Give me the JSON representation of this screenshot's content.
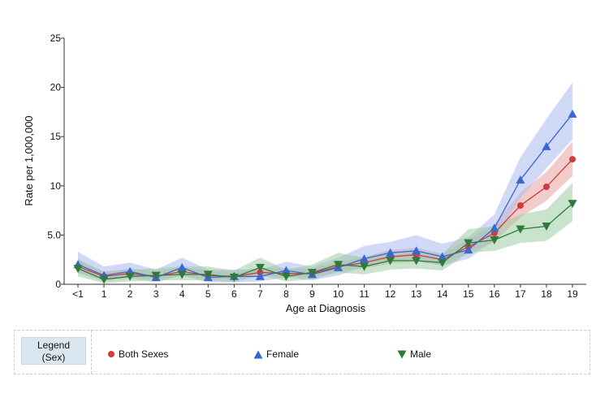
{
  "chart_data": {
    "type": "line",
    "xlabel": "Age at Diagnosis",
    "ylabel": "Rate per 1,000,000",
    "ylim": [
      0,
      25
    ],
    "yticks": [
      0,
      5,
      10,
      15,
      20,
      25
    ],
    "ytick_labels": [
      "0",
      "5.0",
      "10",
      "15",
      "20",
      "25"
    ],
    "categories": [
      "<1",
      "1",
      "2",
      "3",
      "4",
      "5",
      "6",
      "7",
      "8",
      "9",
      "10",
      "11",
      "12",
      "13",
      "14",
      "15",
      "16",
      "17",
      "18",
      "19"
    ],
    "grid": false,
    "series": [
      {
        "name": "Both Sexes",
        "color": "#d23b3b",
        "band_color": "#e8a0a0",
        "marker": "circle",
        "values": [
          1.8,
          0.8,
          1.1,
          0.8,
          1.3,
          0.9,
          0.8,
          1.2,
          1.1,
          1.1,
          1.8,
          2.2,
          2.8,
          3.0,
          2.5,
          3.8,
          5.2,
          8.0,
          9.9,
          12.7
        ],
        "lower": [
          1.2,
          0.5,
          0.7,
          0.5,
          0.8,
          0.5,
          0.5,
          0.8,
          0.7,
          0.7,
          1.3,
          1.6,
          2.1,
          2.3,
          1.9,
          3.1,
          4.3,
          6.8,
          8.5,
          11.0
        ],
        "upper": [
          2.5,
          1.3,
          1.6,
          1.3,
          1.8,
          1.4,
          1.3,
          1.7,
          1.6,
          1.6,
          2.3,
          2.8,
          3.5,
          3.7,
          3.1,
          4.6,
          6.1,
          9.3,
          11.4,
          14.5
        ]
      },
      {
        "name": "Female",
        "color": "#3a67d0",
        "band_color": "#a9bcef",
        "marker": "triangle-up",
        "values": [
          2.0,
          0.9,
          1.3,
          0.7,
          1.7,
          0.7,
          0.8,
          0.8,
          1.4,
          1.0,
          1.7,
          2.6,
          3.2,
          3.4,
          2.8,
          3.5,
          5.7,
          10.6,
          14.0,
          17.3
        ],
        "lower": [
          1.1,
          0.3,
          0.6,
          0.2,
          0.9,
          0.2,
          0.2,
          0.3,
          0.7,
          0.4,
          0.9,
          1.8,
          2.3,
          2.4,
          1.9,
          2.6,
          4.4,
          8.8,
          11.8,
          14.7
        ],
        "upper": [
          3.3,
          1.8,
          2.2,
          1.5,
          2.7,
          1.5,
          1.5,
          1.5,
          2.3,
          1.8,
          2.7,
          3.9,
          4.3,
          5.0,
          4.1,
          4.8,
          7.1,
          12.9,
          16.8,
          20.5
        ]
      },
      {
        "name": "Male",
        "color": "#2e7a3a",
        "band_color": "#9fcca3",
        "marker": "triangle-down",
        "values": [
          1.6,
          0.5,
          0.8,
          0.9,
          1.0,
          1.0,
          0.7,
          1.7,
          0.8,
          1.2,
          2.0,
          1.8,
          2.4,
          2.4,
          2.2,
          4.2,
          4.5,
          5.6,
          5.9,
          8.2
        ],
        "lower": [
          0.8,
          0.1,
          0.3,
          0.4,
          0.4,
          0.4,
          0.2,
          0.9,
          0.3,
          0.5,
          1.2,
          1.0,
          1.5,
          1.6,
          1.4,
          3.2,
          3.4,
          4.2,
          4.4,
          6.4
        ],
        "upper": [
          2.6,
          1.2,
          1.5,
          1.6,
          1.8,
          1.8,
          1.4,
          2.7,
          1.5,
          2.0,
          3.2,
          2.7,
          3.4,
          3.3,
          3.1,
          5.6,
          5.9,
          7.1,
          7.6,
          10.3
        ]
      }
    ]
  },
  "legend": {
    "title_line1": "Legend",
    "title_line2": "(Sex)",
    "items": [
      {
        "label": "Both Sexes"
      },
      {
        "label": "Female"
      },
      {
        "label": "Male"
      }
    ]
  }
}
